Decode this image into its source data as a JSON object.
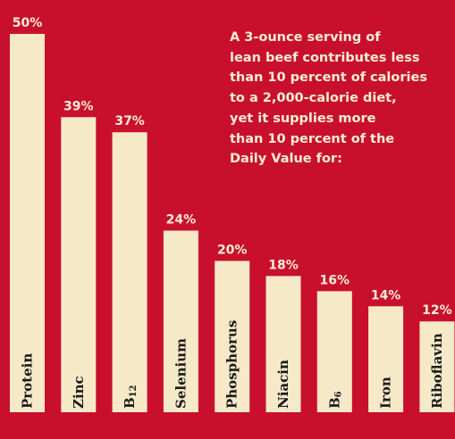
{
  "chart_data": {
    "type": "bar",
    "title": "",
    "xlabel": "",
    "ylabel": "",
    "ylim": [
      0,
      50
    ],
    "grid": false,
    "categories": [
      "Protein",
      "Zinc",
      "B12",
      "Selenium",
      "Phosphorus",
      "Niacin",
      "B6",
      "Iron",
      "Riboflavin"
    ],
    "values": [
      50,
      39,
      37,
      24,
      20,
      18,
      16,
      14,
      12
    ],
    "data_labels": [
      "50%",
      "39%",
      "37%",
      "24%",
      "20%",
      "18%",
      "16%",
      "14%",
      "12%"
    ],
    "annotation_lines": [
      "A 3-ounce serving of",
      "lean beef contributes less",
      "than 10 percent of calories",
      "to a 2,000-calorie diet,",
      "yet it supplies more",
      "than 10 percent of the",
      "Daily Value for:"
    ]
  },
  "colors": {
    "background": "#c8102e",
    "bar": "#f6e9c8",
    "label": "#fbeed3",
    "category_text": "#1a1a1a"
  }
}
